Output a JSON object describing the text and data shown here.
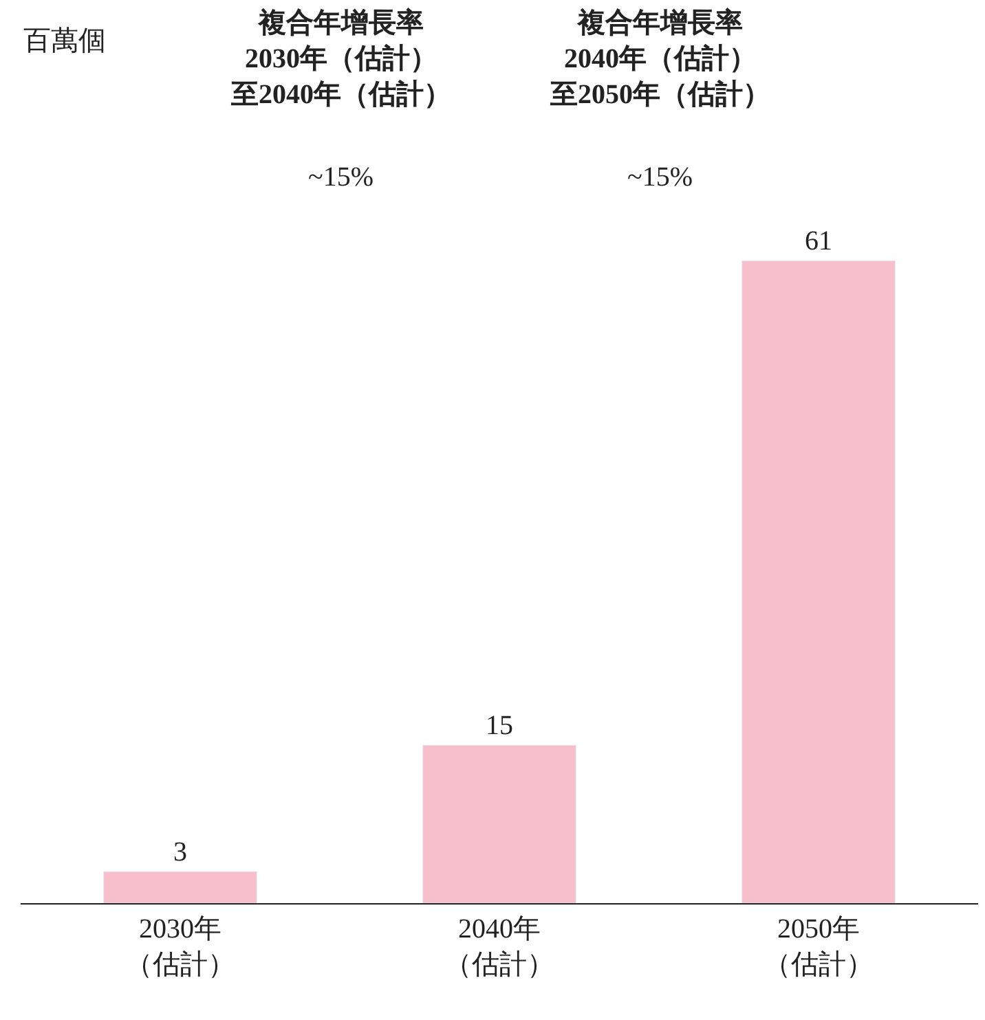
{
  "chart_data": {
    "type": "bar",
    "categories": [
      "2030年（估計）",
      "2040年（估計）",
      "2050年（估計）"
    ],
    "values": [
      3,
      15,
      61
    ],
    "color": "#f7bfcc",
    "data_labels": true,
    "annotations": [
      "百萬個",
      "複合年增長率2030年（估計）至2040年（估計）",
      "~15%",
      "複合年增長率2040年（估計）至2050年（估計）",
      "~15%"
    ],
    "legend": false
  }
}
